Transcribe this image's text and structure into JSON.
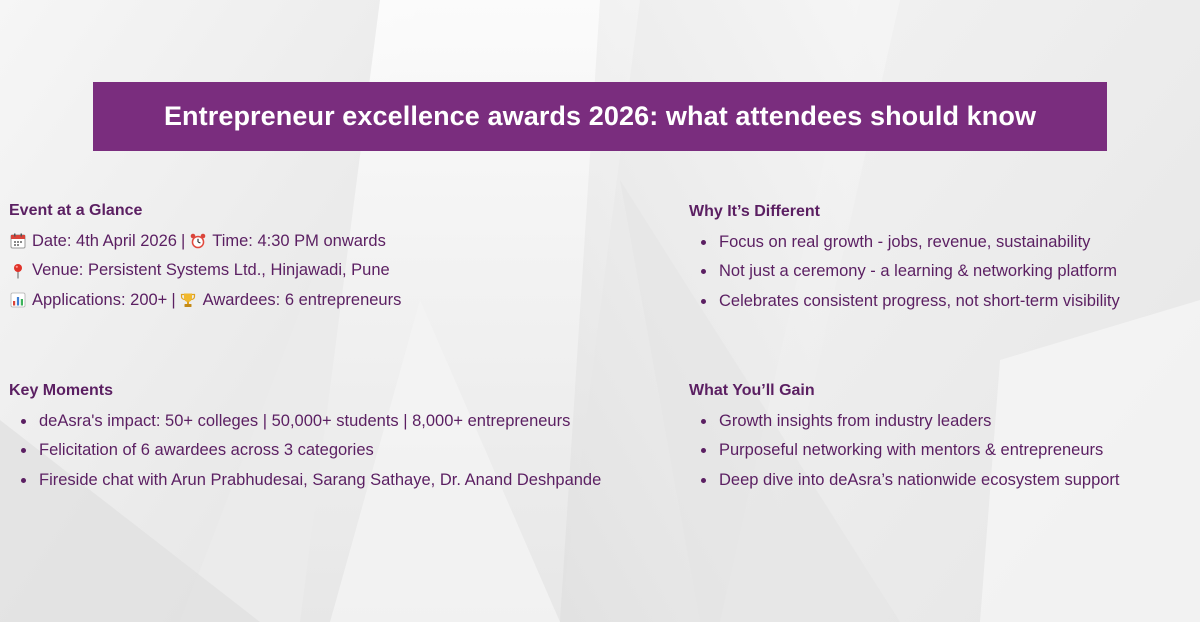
{
  "title": "Entrepreneur excellence awards 2026: what attendees should know",
  "colors": {
    "accent": "#7a2d7e",
    "text": "#5b1f62",
    "background": "#ececec"
  },
  "glance": {
    "heading": "Event at a Glance",
    "date": "Date: 4th April 2026",
    "time": "Time: 4:30 PM onwards",
    "venue": "Venue: Persistent Systems Ltd., Hinjawadi, Pune",
    "applications": "Applications: 200+",
    "awardees": "Awardees: 6 entrepreneurs",
    "separator": "|",
    "icons": [
      "calendar-icon",
      "alarm-clock-icon",
      "location-pin-icon",
      "bar-chart-icon",
      "trophy-icon"
    ]
  },
  "why": {
    "heading": "Why It’s Different",
    "items": [
      "Focus on real growth - jobs, revenue, sustainability",
      "Not just a ceremony - a learning & networking platform",
      "Celebrates consistent progress, not short-term visibility"
    ]
  },
  "moments": {
    "heading": "Key Moments",
    "items": [
      "deAsra's impact: 50+ colleges | 50,000+ students | 8,000+ entrepreneurs",
      "Felicitation of 6 awardees across 3 categories",
      "Fireside chat with Arun Prabhudesai, Sarang Sathaye, Dr. Anand Deshpande"
    ]
  },
  "gain": {
    "heading": "What You’ll Gain",
    "items": [
      "Growth insights from industry leaders",
      "Purposeful networking with mentors & entrepreneurs",
      "Deep dive into deAsra’s nationwide ecosystem support"
    ]
  }
}
